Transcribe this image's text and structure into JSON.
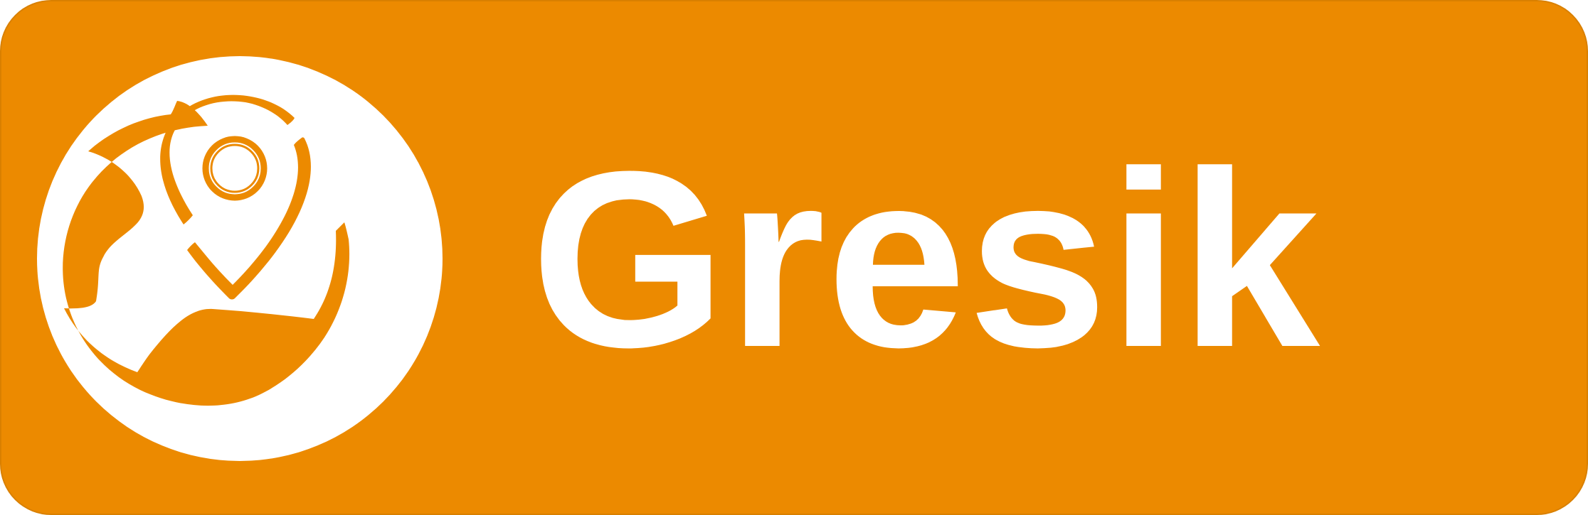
{
  "badge": {
    "label": "Gresik",
    "accent_color": "#EC8A00",
    "text_color": "#FFFFFF",
    "icon": "location-pin-map-icon"
  }
}
